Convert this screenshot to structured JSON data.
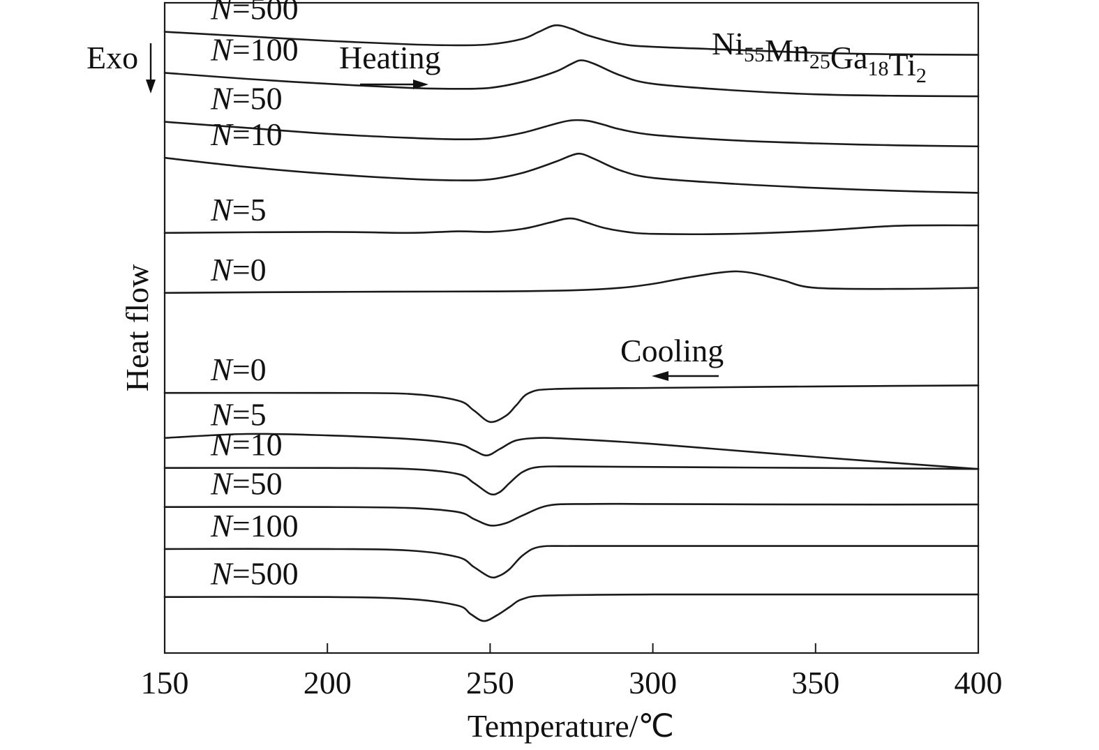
{
  "chart_data": {
    "type": "line",
    "xlabel": "Temperature/℃",
    "ylabel": "Heat flow",
    "xlim": [
      150,
      400
    ],
    "x_ticks": [
      "150",
      "200",
      "250",
      "300",
      "350",
      "400"
    ],
    "y_ticks": [],
    "grid": false,
    "annotations": {
      "exo": "Exo",
      "heating": "Heating",
      "cooling": "Cooling",
      "composition": {
        "parts": [
          {
            "text": "Ni",
            "sub": "55"
          },
          {
            "text": "Mn",
            "sub": "25"
          },
          {
            "text": "Ga",
            "sub": "18"
          },
          {
            "text": "Ti",
            "sub": "2"
          }
        ]
      }
    },
    "series_label_symbol": "N",
    "heating_series": [
      {
        "name": "N=500",
        "n": "500",
        "x": [
          150,
          175,
          200,
          225,
          240,
          250,
          260,
          265,
          270,
          275,
          280,
          290,
          300,
          325,
          350,
          375,
          400
        ],
        "y": [
          -0.08,
          -0.17,
          -0.26,
          -0.33,
          -0.35,
          -0.33,
          -0.22,
          -0.08,
          0.05,
          -0.02,
          -0.15,
          -0.32,
          -0.38,
          -0.44,
          -0.5,
          -0.53,
          -0.54
        ]
      },
      {
        "name": "N=100",
        "n": "100",
        "x": [
          150,
          175,
          200,
          225,
          240,
          250,
          260,
          270,
          275,
          278,
          282,
          290,
          300,
          325,
          350,
          375,
          400
        ],
        "y": [
          -0.9,
          -1.02,
          -1.12,
          -1.2,
          -1.22,
          -1.2,
          -1.08,
          -0.88,
          -0.72,
          -0.65,
          -0.72,
          -0.95,
          -1.12,
          -1.25,
          -1.33,
          -1.36,
          -1.37
        ]
      },
      {
        "name": "N=50",
        "n": "50",
        "x": [
          150,
          175,
          200,
          225,
          240,
          250,
          260,
          270,
          275,
          280,
          285,
          290,
          300,
          325,
          350,
          375,
          400
        ],
        "y": [
          -1.88,
          -2.0,
          -2.12,
          -2.2,
          -2.23,
          -2.21,
          -2.1,
          -1.92,
          -1.85,
          -1.86,
          -1.94,
          -2.03,
          -2.14,
          -2.25,
          -2.31,
          -2.35,
          -2.37
        ]
      },
      {
        "name": "N=10",
        "n": "10",
        "x": [
          150,
          175,
          200,
          225,
          240,
          250,
          260,
          270,
          275,
          278,
          282,
          290,
          300,
          325,
          350,
          375,
          400
        ],
        "y": [
          -2.6,
          -2.78,
          -2.92,
          -3.02,
          -3.05,
          -3.03,
          -2.9,
          -2.68,
          -2.55,
          -2.52,
          -2.62,
          -2.85,
          -3.0,
          -3.12,
          -3.2,
          -3.26,
          -3.3
        ]
      },
      {
        "name": "N=5",
        "n": "5",
        "x": [
          150,
          200,
          225,
          240,
          250,
          260,
          268,
          273,
          276,
          280,
          285,
          292,
          300,
          325,
          350,
          375,
          400
        ],
        "y": [
          -4.1,
          -4.08,
          -4.1,
          -4.07,
          -4.08,
          -4.02,
          -3.9,
          -3.82,
          -3.82,
          -3.9,
          -4.0,
          -4.08,
          -4.12,
          -4.12,
          -4.06,
          -3.96,
          -3.95
        ]
      },
      {
        "name": "N=0",
        "n": "0",
        "x": [
          150,
          200,
          250,
          275,
          290,
          300,
          310,
          320,
          326,
          332,
          340,
          350,
          375,
          400
        ],
        "y": [
          -5.3,
          -5.28,
          -5.27,
          -5.25,
          -5.2,
          -5.12,
          -5.0,
          -4.9,
          -4.87,
          -4.92,
          -5.05,
          -5.2,
          -5.22,
          -5.2
        ]
      }
    ],
    "cooling_series": [
      {
        "name": "N=0",
        "n": "0",
        "x": [
          150,
          200,
          225,
          240,
          245,
          250,
          255,
          258,
          262,
          270,
          300,
          350,
          400
        ],
        "y": [
          -7.3,
          -7.3,
          -7.32,
          -7.45,
          -7.65,
          -7.88,
          -7.75,
          -7.55,
          -7.3,
          -7.22,
          -7.2,
          -7.17,
          -7.15
        ]
      },
      {
        "name": "N=5",
        "n": "5",
        "x": [
          150,
          175,
          200,
          225,
          240,
          245,
          249,
          253,
          258,
          265,
          275,
          300,
          350,
          400
        ],
        "y": [
          -8.2,
          -8.12,
          -8.15,
          -8.22,
          -8.32,
          -8.45,
          -8.55,
          -8.42,
          -8.25,
          -8.2,
          -8.22,
          -8.32,
          -8.58,
          -8.82
        ]
      },
      {
        "name": "N=10",
        "n": "10",
        "x": [
          150,
          200,
          225,
          240,
          245,
          250,
          253,
          256,
          260,
          265,
          275,
          300,
          350,
          400
        ],
        "y": [
          -8.8,
          -8.8,
          -8.82,
          -8.92,
          -9.1,
          -9.32,
          -9.28,
          -9.1,
          -8.88,
          -8.78,
          -8.77,
          -8.78,
          -8.8,
          -8.82
        ]
      },
      {
        "name": "N=50",
        "n": "50",
        "x": [
          150,
          200,
          225,
          240,
          245,
          250,
          255,
          260,
          268,
          280,
          300,
          350,
          400
        ],
        "y": [
          -9.58,
          -9.58,
          -9.6,
          -9.68,
          -9.82,
          -9.95,
          -9.9,
          -9.75,
          -9.55,
          -9.52,
          -9.52,
          -9.53,
          -9.53
        ]
      },
      {
        "name": "N=100",
        "n": "100",
        "x": [
          150,
          200,
          225,
          240,
          245,
          250,
          253,
          256,
          260,
          265,
          275,
          300,
          350,
          400
        ],
        "y": [
          -10.42,
          -10.42,
          -10.45,
          -10.58,
          -10.78,
          -10.98,
          -10.95,
          -10.82,
          -10.55,
          -10.38,
          -10.36,
          -10.36,
          -10.36,
          -10.36
        ]
      },
      {
        "name": "N=500",
        "n": "500",
        "x": [
          150,
          200,
          225,
          240,
          244,
          248,
          252,
          256,
          260,
          268,
          300,
          350,
          400
        ],
        "y": [
          -11.38,
          -11.38,
          -11.42,
          -11.55,
          -11.72,
          -11.86,
          -11.75,
          -11.58,
          -11.42,
          -11.35,
          -11.33,
          -11.33,
          -11.33
        ]
      }
    ]
  }
}
